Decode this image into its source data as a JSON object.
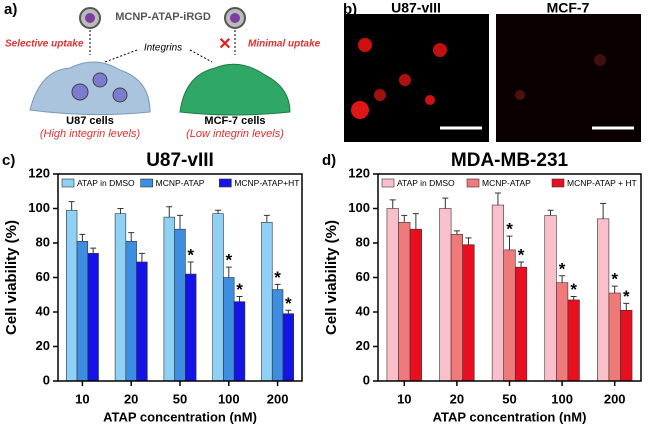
{
  "panel_a": {
    "label": "a)",
    "particle": "MCNP-ATAP-iRGD",
    "selective": "Selective uptake",
    "integrins": "Integrins",
    "minimal": "Minimal uptake",
    "cell1": "U87 cells",
    "cell1_note": "(High integrin levels)",
    "cell2": "MCF-7 cells",
    "cell2_note": "(Low integrin levels)"
  },
  "panel_b": {
    "label": "b)",
    "image1": "U87-vIII",
    "image2": "MCF-7"
  },
  "chart_data": [
    {
      "type": "bar",
      "panel": "c)",
      "title": "U87-vIII",
      "ylabel": "Cell viability (%)",
      "xlabel": "ATAP concentration (nM)",
      "categories": [
        "10",
        "20",
        "50",
        "100",
        "200"
      ],
      "ylim": [
        0,
        120
      ],
      "yticks": [
        0,
        20,
        40,
        60,
        80,
        100,
        120
      ],
      "series": [
        {
          "name": "ATAP in DMSO",
          "color": "#8fd0f5",
          "values": [
            99,
            97,
            95,
            97,
            92
          ],
          "errors": [
            5,
            3,
            6,
            2,
            4
          ],
          "annotations": [
            null,
            null,
            null,
            null,
            null
          ]
        },
        {
          "name": "MCNP-ATAP",
          "color": "#3d8de0",
          "values": [
            81,
            81,
            88,
            60,
            53
          ],
          "errors": [
            4,
            5,
            8,
            6,
            3
          ],
          "annotations": [
            null,
            null,
            null,
            "*",
            "*"
          ]
        },
        {
          "name": "MCNP-ATAP+HT",
          "color": "#1414e6",
          "values": [
            74,
            69,
            62,
            46,
            39
          ],
          "errors": [
            3,
            5,
            7,
            3,
            2
          ],
          "annotations": [
            null,
            null,
            "*",
            "*",
            "*"
          ]
        }
      ]
    },
    {
      "type": "bar",
      "panel": "d)",
      "title": "MDA-MB-231",
      "ylabel": "Cell viability (%)",
      "xlabel": "ATAP concentration (nM)",
      "categories": [
        "10",
        "20",
        "50",
        "100",
        "200"
      ],
      "ylim": [
        0,
        120
      ],
      "yticks": [
        0,
        20,
        40,
        60,
        80,
        100,
        120
      ],
      "series": [
        {
          "name": "ATAP in DMSO",
          "color": "#f9c0cc",
          "values": [
            100,
            100,
            102,
            96,
            94
          ],
          "errors": [
            5,
            6,
            7,
            3,
            9
          ],
          "annotations": [
            null,
            null,
            null,
            null,
            null
          ]
        },
        {
          "name": "MCNP-ATAP",
          "color": "#f07a7a",
          "values": [
            92,
            85,
            76,
            57,
            51
          ],
          "errors": [
            4,
            2,
            8,
            4,
            4
          ],
          "annotations": [
            null,
            null,
            "*",
            "*",
            "*"
          ]
        },
        {
          "name": "MCNP-ATAP + HT",
          "color": "#e81020",
          "values": [
            88,
            79,
            66,
            47,
            41
          ],
          "errors": [
            9,
            4,
            3,
            2,
            4
          ],
          "annotations": [
            null,
            null,
            "*",
            "*",
            "*"
          ]
        }
      ]
    }
  ]
}
